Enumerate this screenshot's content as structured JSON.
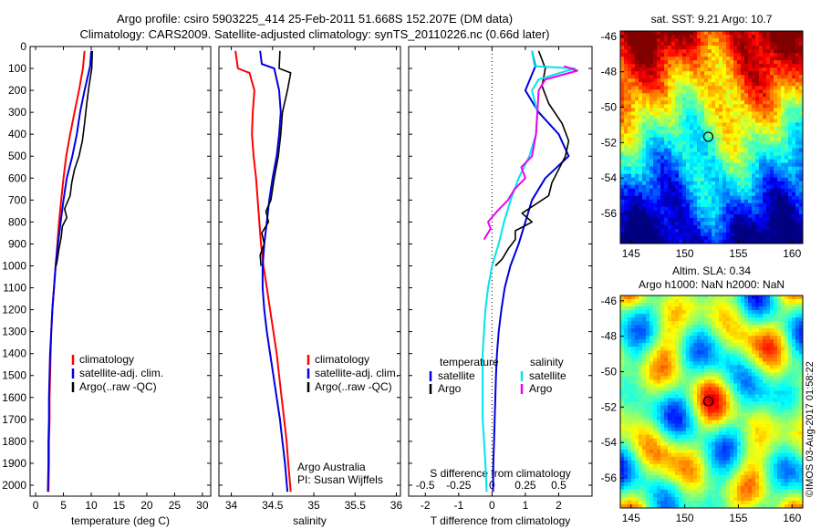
{
  "title_line1": "Argo profile: csiro 5903225_414 25-Feb-2011 51.668S 152.207E (DM data)",
  "title_line2": "Climatology: CARS2009. Satellite-adjusted climatology: synTS_20110226.nc (0.66d later)",
  "watermark": "©IMOS 03-Aug-2017 01:58:22",
  "colors": {
    "climatology": "#ff0000",
    "satellite": "#0000dd",
    "argo": "#000000",
    "sat_salinity": "#00e5ee",
    "argo_salinity": "#ee00ee"
  },
  "chart_data": [
    {
      "type": "line",
      "xlabel": "temperature (deg C)",
      "ylim": [
        2050,
        0
      ],
      "xlim": [
        -1,
        31.5
      ],
      "xticks": [
        0,
        5,
        10,
        15,
        20,
        25,
        30
      ],
      "yticks": [
        0,
        100,
        200,
        300,
        400,
        500,
        600,
        700,
        800,
        900,
        1000,
        1100,
        1200,
        1300,
        1400,
        1500,
        1600,
        1700,
        1800,
        1900,
        2000
      ],
      "legend": [
        "climatology",
        "satellite-adj. clim.",
        "Argo(..raw -QC)"
      ],
      "series": [
        {
          "key": "climatology",
          "color": "#ff0000",
          "points": [
            [
              8.8,
              20
            ],
            [
              8.5,
              100
            ],
            [
              7.8,
              200
            ],
            [
              7.0,
              300
            ],
            [
              6.2,
              400
            ],
            [
              5.5,
              500
            ],
            [
              5.0,
              600
            ],
            [
              4.6,
              700
            ],
            [
              4.2,
              800
            ],
            [
              3.9,
              900
            ],
            [
              3.6,
              1000
            ],
            [
              3.3,
              1100
            ],
            [
              3.0,
              1200
            ],
            [
              2.8,
              1300
            ],
            [
              2.7,
              1400
            ],
            [
              2.6,
              1500
            ],
            [
              2.5,
              1600
            ],
            [
              2.5,
              1700
            ],
            [
              2.4,
              1800
            ],
            [
              2.4,
              1900
            ],
            [
              2.3,
              2030
            ]
          ]
        },
        {
          "key": "satellite",
          "color": "#0000dd",
          "points": [
            [
              10.0,
              20
            ],
            [
              9.8,
              90
            ],
            [
              8.8,
              200
            ],
            [
              8.0,
              300
            ],
            [
              7.4,
              400
            ],
            [
              6.6,
              500
            ],
            [
              5.6,
              600
            ],
            [
              5.0,
              700
            ],
            [
              4.5,
              800
            ],
            [
              4.0,
              900
            ],
            [
              3.6,
              1000
            ],
            [
              3.3,
              1100
            ],
            [
              3.0,
              1200
            ],
            [
              2.8,
              1300
            ],
            [
              2.6,
              1400
            ],
            [
              2.5,
              1500
            ],
            [
              2.4,
              1600
            ],
            [
              2.4,
              1700
            ],
            [
              2.3,
              1800
            ],
            [
              2.3,
              1900
            ],
            [
              2.2,
              2030
            ]
          ]
        },
        {
          "key": "argo",
          "color": "#000000",
          "points": [
            [
              10.2,
              20
            ],
            [
              10.1,
              100
            ],
            [
              9.6,
              180
            ],
            [
              9.2,
              260
            ],
            [
              8.8,
              350
            ],
            [
              8.4,
              430
            ],
            [
              7.8,
              500
            ],
            [
              7.0,
              560
            ],
            [
              6.5,
              620
            ],
            [
              6.2,
              680
            ],
            [
              5.2,
              740
            ],
            [
              5.6,
              780
            ],
            [
              4.8,
              820
            ],
            [
              4.6,
              870
            ],
            [
              4.2,
              920
            ],
            [
              3.9,
              970
            ],
            [
              3.7,
              1000
            ]
          ]
        }
      ]
    },
    {
      "type": "line",
      "xlabel": "salinity",
      "ylim": [
        2050,
        0
      ],
      "xlim": [
        33.85,
        36.05
      ],
      "xticks": [
        34,
        34.5,
        35,
        35.5,
        36
      ],
      "legend": [
        "climatology",
        "satellite-adj. clim.",
        "Argo(..raw -QC)"
      ],
      "annotation": [
        "Argo Australia",
        "PI: Susan Wijffels"
      ],
      "series": [
        {
          "key": "climatology",
          "color": "#ff0000",
          "points": [
            [
              34.05,
              20
            ],
            [
              34.08,
              100
            ],
            [
              34.22,
              120
            ],
            [
              34.28,
              200
            ],
            [
              34.26,
              300
            ],
            [
              34.25,
              400
            ],
            [
              34.27,
              500
            ],
            [
              34.3,
              600
            ],
            [
              34.32,
              700
            ],
            [
              34.34,
              800
            ],
            [
              34.36,
              900
            ],
            [
              34.39,
              1000
            ],
            [
              34.43,
              1100
            ],
            [
              34.47,
              1200
            ],
            [
              34.51,
              1300
            ],
            [
              34.55,
              1400
            ],
            [
              34.58,
              1500
            ],
            [
              34.61,
              1600
            ],
            [
              34.64,
              1700
            ],
            [
              34.67,
              1800
            ],
            [
              34.69,
              1900
            ],
            [
              34.72,
              2030
            ]
          ]
        },
        {
          "key": "satellite",
          "color": "#0000dd",
          "points": [
            [
              34.35,
              20
            ],
            [
              34.37,
              80
            ],
            [
              34.52,
              100
            ],
            [
              34.58,
              200
            ],
            [
              34.6,
              300
            ],
            [
              34.58,
              400
            ],
            [
              34.55,
              500
            ],
            [
              34.5,
              600
            ],
            [
              34.46,
              700
            ],
            [
              34.43,
              800
            ],
            [
              34.4,
              900
            ],
            [
              34.38,
              1000
            ],
            [
              34.38,
              1100
            ],
            [
              34.4,
              1200
            ],
            [
              34.43,
              1300
            ],
            [
              34.47,
              1400
            ],
            [
              34.51,
              1500
            ],
            [
              34.55,
              1600
            ],
            [
              34.59,
              1700
            ],
            [
              34.62,
              1800
            ],
            [
              34.65,
              1900
            ],
            [
              34.68,
              2030
            ]
          ]
        },
        {
          "key": "argo",
          "color": "#000000",
          "points": [
            [
              34.59,
              20
            ],
            [
              34.58,
              100
            ],
            [
              34.72,
              120
            ],
            [
              34.68,
              200
            ],
            [
              34.62,
              300
            ],
            [
              34.6,
              400
            ],
            [
              34.57,
              500
            ],
            [
              34.52,
              600
            ],
            [
              34.48,
              700
            ],
            [
              34.42,
              750
            ],
            [
              34.45,
              800
            ],
            [
              34.37,
              850
            ],
            [
              34.4,
              900
            ],
            [
              34.35,
              950
            ],
            [
              34.36,
              1000
            ]
          ]
        }
      ]
    },
    {
      "type": "line",
      "xlabel": "T difference from climatology",
      "xlabel2": "S difference from climatology",
      "ylim": [
        2050,
        0
      ],
      "xlim": [
        -2.5,
        3.0
      ],
      "xticks": [
        -2,
        -1,
        0,
        1,
        2
      ],
      "xticks_s": [
        -0.5,
        -0.25,
        0,
        0.25,
        0.5
      ],
      "legend_temperature_title": "temperature",
      "legend_salinity_title": "salinity",
      "legend_satellite": "satellite",
      "legend_argo": "Argo",
      "series": [
        {
          "key": "T satellite",
          "color": "#0000dd",
          "points": [
            [
              1.2,
              20
            ],
            [
              1.3,
              90
            ],
            [
              1.0,
              200
            ],
            [
              1.4,
              300
            ],
            [
              2.0,
              400
            ],
            [
              2.3,
              500
            ],
            [
              1.6,
              600
            ],
            [
              1.2,
              700
            ],
            [
              1.0,
              800
            ],
            [
              0.8,
              900
            ],
            [
              0.55,
              1000
            ],
            [
              0.38,
              1100
            ],
            [
              0.28,
              1200
            ],
            [
              0.2,
              1300
            ],
            [
              0.15,
              1400
            ],
            [
              0.12,
              1500
            ],
            [
              0.1,
              1600
            ],
            [
              0.08,
              1700
            ],
            [
              0.06,
              1800
            ],
            [
              0.04,
              1900
            ],
            [
              0.03,
              2030
            ]
          ]
        },
        {
          "key": "T Argo",
          "color": "#000000",
          "points": [
            [
              1.4,
              20
            ],
            [
              1.6,
              100
            ],
            [
              1.5,
              180
            ],
            [
              1.7,
              260
            ],
            [
              2.1,
              350
            ],
            [
              2.3,
              430
            ],
            [
              2.2,
              500
            ],
            [
              2.0,
              560
            ],
            [
              1.8,
              620
            ],
            [
              1.7,
              680
            ],
            [
              0.9,
              760
            ],
            [
              1.2,
              800
            ],
            [
              0.7,
              840
            ],
            [
              0.7,
              880
            ],
            [
              0.5,
              920
            ],
            [
              0.3,
              970
            ],
            [
              0.1,
              1000
            ]
          ]
        },
        {
          "key": "S satellite",
          "color": "#00e5ee",
          "points": [
            [
              0.3,
              20
            ],
            [
              0.32,
              90
            ],
            [
              0.62,
              100
            ],
            [
              0.35,
              150
            ],
            [
              0.3,
              200
            ],
            [
              0.34,
              300
            ],
            [
              0.33,
              400
            ],
            [
              0.28,
              500
            ],
            [
              0.2,
              600
            ],
            [
              0.14,
              700
            ],
            [
              0.09,
              800
            ],
            [
              0.05,
              900
            ],
            [
              0.0,
              1000
            ],
            [
              -0.03,
              1100
            ],
            [
              -0.05,
              1200
            ],
            [
              -0.06,
              1300
            ],
            [
              -0.07,
              1400
            ],
            [
              -0.07,
              1500
            ],
            [
              -0.07,
              1600
            ],
            [
              -0.07,
              1700
            ],
            [
              -0.06,
              1800
            ],
            [
              -0.05,
              1900
            ],
            [
              -0.04,
              2030
            ]
          ]
        },
        {
          "key": "S Argo",
          "color": "#ee00ee",
          "points": [
            [
              0.54,
              90
            ],
            [
              0.64,
              110
            ],
            [
              0.4,
              150
            ],
            [
              0.35,
              200
            ],
            [
              0.34,
              300
            ],
            [
              0.33,
              400
            ],
            [
              0.3,
              500
            ],
            [
              0.22,
              550
            ],
            [
              0.25,
              600
            ],
            [
              0.17,
              650
            ],
            [
              0.12,
              700
            ],
            [
              0.04,
              750
            ],
            [
              -0.03,
              800
            ],
            [
              -0.01,
              830
            ],
            [
              -0.06,
              880
            ]
          ]
        }
      ]
    },
    {
      "type": "heatmap",
      "title": "sat. SST: 9.21  Argo: 10.7",
      "xlim": [
        144,
        161
      ],
      "ylim": [
        -57.7,
        -45.7
      ],
      "xticks": [
        145,
        150,
        155,
        160
      ],
      "yticks": [
        -46,
        -48,
        -50,
        -52,
        -54,
        -56
      ],
      "colormap": "jet",
      "marker": [
        152.2,
        -51.67
      ]
    },
    {
      "type": "heatmap",
      "title_line1": "Altim. SLA: 0.34",
      "title_line2": "Argo h1000: NaN h2000: NaN",
      "xlim": [
        144,
        161
      ],
      "ylim": [
        -57.7,
        -45.7
      ],
      "xticks": [
        145,
        150,
        155,
        160
      ],
      "yticks": [
        -46,
        -48,
        -50,
        -52,
        -54,
        -56
      ],
      "colormap": "jet",
      "marker": [
        152.2,
        -51.67
      ]
    }
  ]
}
